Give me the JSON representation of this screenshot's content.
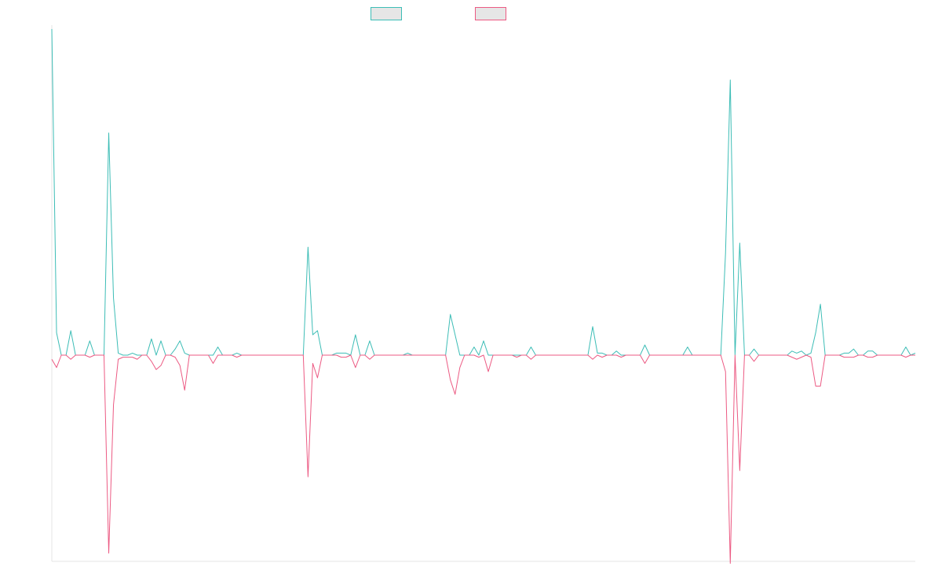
{
  "chart_data": {
    "type": "line",
    "title": "",
    "xlabel": "",
    "ylabel": "",
    "legend_position": "top-center",
    "grid": false,
    "x_range": [
      0,
      167
    ],
    "ylim": [
      -100,
      160
    ],
    "series": [
      {
        "color": "#3dbdb6",
        "fill": "#e6e6e6",
        "values": [
          160,
          11,
          0,
          0,
          12,
          0,
          0,
          0,
          7,
          0,
          0,
          0,
          109,
          28,
          1,
          0,
          0,
          1,
          0,
          0,
          0,
          8,
          0,
          7,
          0,
          0,
          3,
          7,
          1,
          0,
          0,
          0,
          0,
          0,
          0,
          4,
          0,
          0,
          0,
          1,
          0,
          0,
          0,
          0,
          0,
          0,
          0,
          0,
          0,
          0,
          0,
          0,
          0,
          0,
          53,
          10,
          12,
          0,
          0,
          0,
          1,
          1,
          1,
          0,
          10,
          0,
          0,
          7,
          0,
          0,
          0,
          0,
          0,
          0,
          0,
          1,
          0,
          0,
          0,
          0,
          0,
          0,
          0,
          0,
          20,
          10,
          0,
          0,
          0,
          4,
          0,
          7,
          0,
          0,
          0,
          0,
          0,
          0,
          0,
          0,
          0,
          4,
          0,
          0,
          0,
          0,
          0,
          0,
          0,
          0,
          0,
          0,
          0,
          0,
          14,
          1,
          1,
          0,
          0,
          2,
          0,
          0,
          0,
          0,
          0,
          5,
          0,
          0,
          0,
          0,
          0,
          0,
          0,
          0,
          4,
          0,
          0,
          0,
          0,
          0,
          0,
          0,
          50,
          135,
          0,
          55,
          0,
          0,
          3,
          0,
          0,
          0,
          0,
          0,
          0,
          0,
          2,
          1,
          2,
          0,
          1,
          11,
          25,
          0,
          0,
          0,
          0,
          1,
          1,
          3,
          0,
          0,
          2,
          2,
          0,
          0,
          0,
          0,
          0,
          0,
          4,
          0,
          1
        ]
      },
      {
        "color": "#ec5a83",
        "fill": "#e6e6e6",
        "values": [
          -2,
          -6,
          0,
          0,
          -2,
          0,
          0,
          0,
          -1,
          0,
          0,
          0,
          -96,
          -24,
          -2,
          -1,
          -1,
          -1,
          -2,
          0,
          0,
          -3,
          -7,
          -5,
          0,
          0,
          -1,
          -5,
          -17,
          0,
          0,
          0,
          0,
          0,
          -4,
          0,
          0,
          0,
          0,
          -1,
          0,
          0,
          0,
          0,
          0,
          0,
          0,
          0,
          0,
          0,
          0,
          0,
          0,
          0,
          -59,
          -4,
          -11,
          0,
          0,
          0,
          0,
          -1,
          -1,
          0,
          -6,
          0,
          0,
          -2,
          0,
          0,
          0,
          0,
          0,
          0,
          0,
          0,
          0,
          0,
          0,
          0,
          0,
          0,
          0,
          0,
          -12,
          -19,
          -6,
          0,
          0,
          0,
          -1,
          0,
          -8,
          0,
          0,
          0,
          0,
          0,
          -1,
          0,
          0,
          -2,
          0,
          0,
          0,
          0,
          0,
          0,
          0,
          0,
          0,
          0,
          0,
          0,
          -2,
          0,
          -1,
          0,
          0,
          0,
          -1,
          0,
          0,
          0,
          0,
          -4,
          0,
          0,
          0,
          0,
          0,
          0,
          0,
          0,
          0,
          0,
          0,
          0,
          0,
          0,
          0,
          0,
          -8,
          -101,
          0,
          -56,
          0,
          0,
          -3,
          0,
          0,
          0,
          0,
          0,
          0,
          0,
          -1,
          -2,
          -1,
          0,
          -1,
          -15,
          -15,
          0,
          0,
          0,
          0,
          -1,
          -1,
          -1,
          0,
          0,
          -1,
          -1,
          0,
          0,
          0,
          0,
          0,
          0,
          -1,
          0,
          0
        ]
      }
    ]
  }
}
